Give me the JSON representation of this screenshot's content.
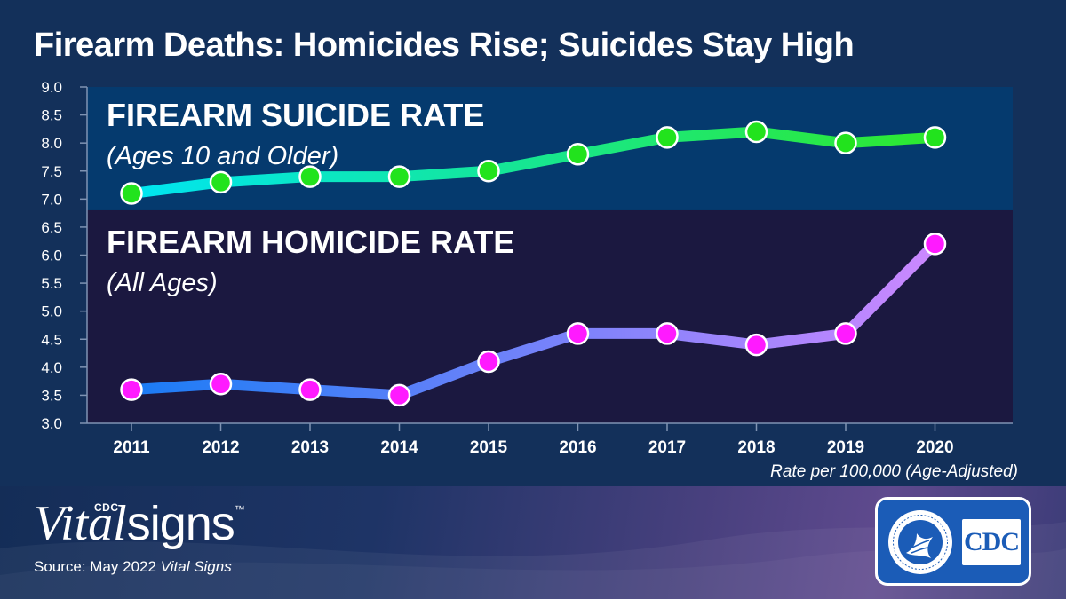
{
  "title": "Firearm Deaths: Homicides Rise; Suicides Stay High",
  "chart_data": {
    "type": "line",
    "categories": [
      "2011",
      "2012",
      "2013",
      "2014",
      "2015",
      "2016",
      "2017",
      "2018",
      "2019",
      "2020"
    ],
    "ylim": [
      3.0,
      9.0
    ],
    "yticks": [
      "3.0",
      "3.5",
      "4.0",
      "4.5",
      "5.0",
      "5.5",
      "6.0",
      "6.5",
      "7.0",
      "7.5",
      "8.0",
      "8.5",
      "9.0"
    ],
    "xlabel": "Rate per 100,000 (Age-Adjusted)",
    "grid": false,
    "series": [
      {
        "name": "FIREARM SUICIDE RATE",
        "subtitle": "(Ages 10 and Older)",
        "values": [
          7.1,
          7.3,
          7.4,
          7.4,
          7.5,
          7.8,
          8.1,
          8.2,
          8.0,
          8.1
        ],
        "line_color_start": "#00e5f2",
        "line_color_end": "#2ee82e",
        "marker_color": "#22e31d",
        "band_color": "#053a6e"
      },
      {
        "name": "FIREARM HOMICIDE RATE",
        "subtitle": "(All Ages)",
        "values": [
          3.6,
          3.7,
          3.6,
          3.5,
          4.1,
          4.6,
          4.6,
          4.4,
          4.6,
          6.2
        ],
        "line_color_start": "#1a7cf5",
        "line_color_end": "#cc88ff",
        "marker_color": "#ff1aff",
        "band_color": "#1b1840"
      }
    ]
  },
  "footer": {
    "brand_cdc": "CDC",
    "brand_vital": "Vital",
    "brand_signs": "signs",
    "brand_tm": "™",
    "source_prefix": "Source: May 2022 ",
    "source_italic": "Vital Signs",
    "logo_text": "CDC"
  }
}
